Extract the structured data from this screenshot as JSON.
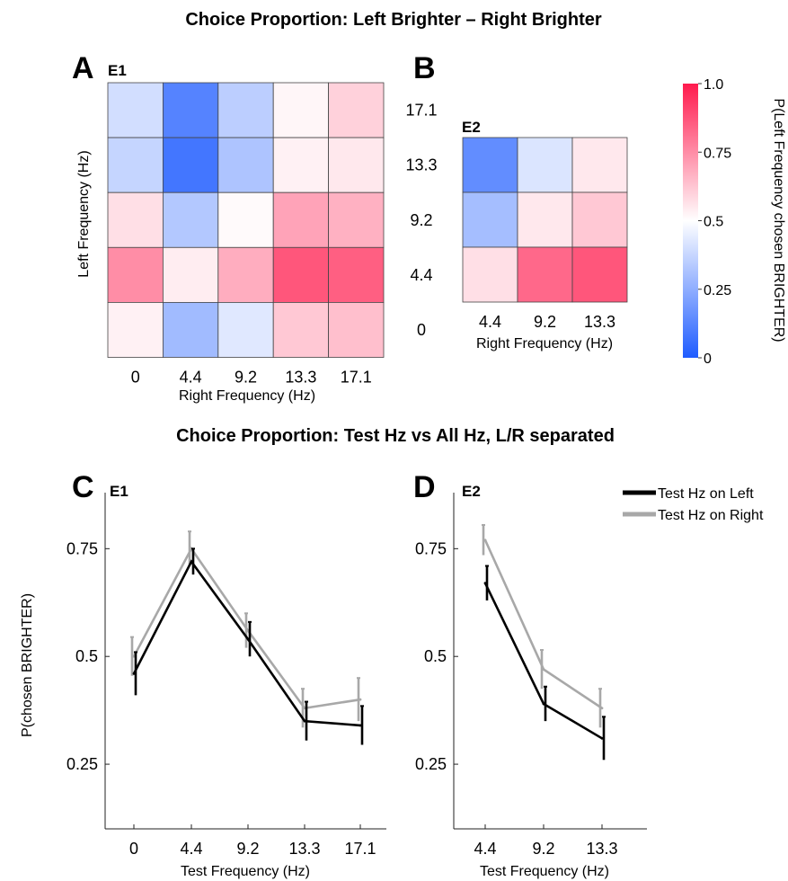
{
  "titles": {
    "top": "Choice Proportion: Left Brighter – Right Brighter",
    "bottom": "Choice Proportion: Test Hz vs All Hz, L/R separated"
  },
  "panels": {
    "a": "A",
    "b": "B",
    "c": "C",
    "d": "D"
  },
  "experiments": {
    "e1": "E1",
    "e2": "E2"
  },
  "colorbar": {
    "label": "P(Left Frequency chosen BRIGHTER)",
    "ticks": [
      "0",
      "0.25",
      "0.5",
      "0.75",
      "1.0"
    ],
    "tick_values": [
      0,
      0.25,
      0.5,
      0.75,
      1.0
    ],
    "low_color": "#1f5cff",
    "mid_color": "#ffffff",
    "high_color": "#ff1a4d"
  },
  "legend": {
    "left": "Test Hz on Left",
    "right": "Test Hz on Right",
    "left_color": "#000000",
    "right_color": "#a8a8a8"
  },
  "chart_data": [
    {
      "type": "heatmap",
      "panel": "A",
      "experiment": "E1",
      "xlabel": "Right Frequency (Hz)",
      "ylabel": "Left Frequency (Hz)",
      "x": [
        "0",
        "4.4",
        "9.2",
        "13.3",
        "17.1"
      ],
      "y": [
        "17.1",
        "13.3",
        "9.2",
        "4.4",
        "0"
      ],
      "values": [
        [
          0.4,
          0.12,
          0.35,
          0.52,
          0.6
        ],
        [
          0.37,
          0.08,
          0.32,
          0.53,
          0.55
        ],
        [
          0.57,
          0.33,
          0.51,
          0.7,
          0.67
        ],
        [
          0.75,
          0.54,
          0.68,
          0.87,
          0.85
        ],
        [
          0.53,
          0.29,
          0.43,
          0.62,
          0.64
        ]
      ],
      "vlim": [
        0,
        1
      ]
    },
    {
      "type": "heatmap",
      "panel": "B",
      "experiment": "E2",
      "xlabel": "Right Frequency (Hz)",
      "ylabel": "",
      "x": [
        "4.4",
        "9.2",
        "13.3"
      ],
      "y": [
        "13.3",
        "9.2",
        "4.4"
      ],
      "values": [
        [
          0.15,
          0.42,
          0.55
        ],
        [
          0.3,
          0.55,
          0.62
        ],
        [
          0.57,
          0.83,
          0.87
        ]
      ],
      "vlim": [
        0,
        1
      ]
    },
    {
      "type": "line",
      "panel": "C",
      "experiment": "E1",
      "xlabel": "Test Frequency (Hz)",
      "ylabel": "P(chosen BRIGHTER)",
      "categories": [
        "0",
        "4.4",
        "9.2",
        "13.3",
        "17.1"
      ],
      "ylim": [
        0.1,
        0.88
      ],
      "yticks": [
        0.25,
        0.5,
        0.75
      ],
      "ytick_labels": [
        "0.25",
        "0.5",
        "0.75"
      ],
      "series": [
        {
          "name": "Test Hz on Left",
          "color": "#000000",
          "values": [
            0.46,
            0.72,
            0.54,
            0.35,
            0.34
          ],
          "errors": [
            0.05,
            0.03,
            0.04,
            0.045,
            0.045
          ]
        },
        {
          "name": "Test Hz on Right",
          "color": "#a8a8a8",
          "values": [
            0.5,
            0.75,
            0.56,
            0.38,
            0.4
          ],
          "errors": [
            0.045,
            0.04,
            0.04,
            0.045,
            0.05
          ]
        }
      ]
    },
    {
      "type": "line",
      "panel": "D",
      "experiment": "E2",
      "xlabel": "Test Frequency (Hz)",
      "ylabel": "",
      "categories": [
        "4.4",
        "9.2",
        "13.3"
      ],
      "ylim": [
        0.1,
        0.88
      ],
      "yticks": [
        0.25,
        0.5,
        0.75
      ],
      "ytick_labels": [
        "0.25",
        "0.5",
        "0.75"
      ],
      "series": [
        {
          "name": "Test Hz on Left",
          "color": "#000000",
          "values": [
            0.67,
            0.39,
            0.31
          ],
          "errors": [
            0.04,
            0.04,
            0.05
          ]
        },
        {
          "name": "Test Hz on Right",
          "color": "#a8a8a8",
          "values": [
            0.77,
            0.47,
            0.38
          ],
          "errors": [
            0.035,
            0.045,
            0.045
          ]
        }
      ]
    }
  ]
}
